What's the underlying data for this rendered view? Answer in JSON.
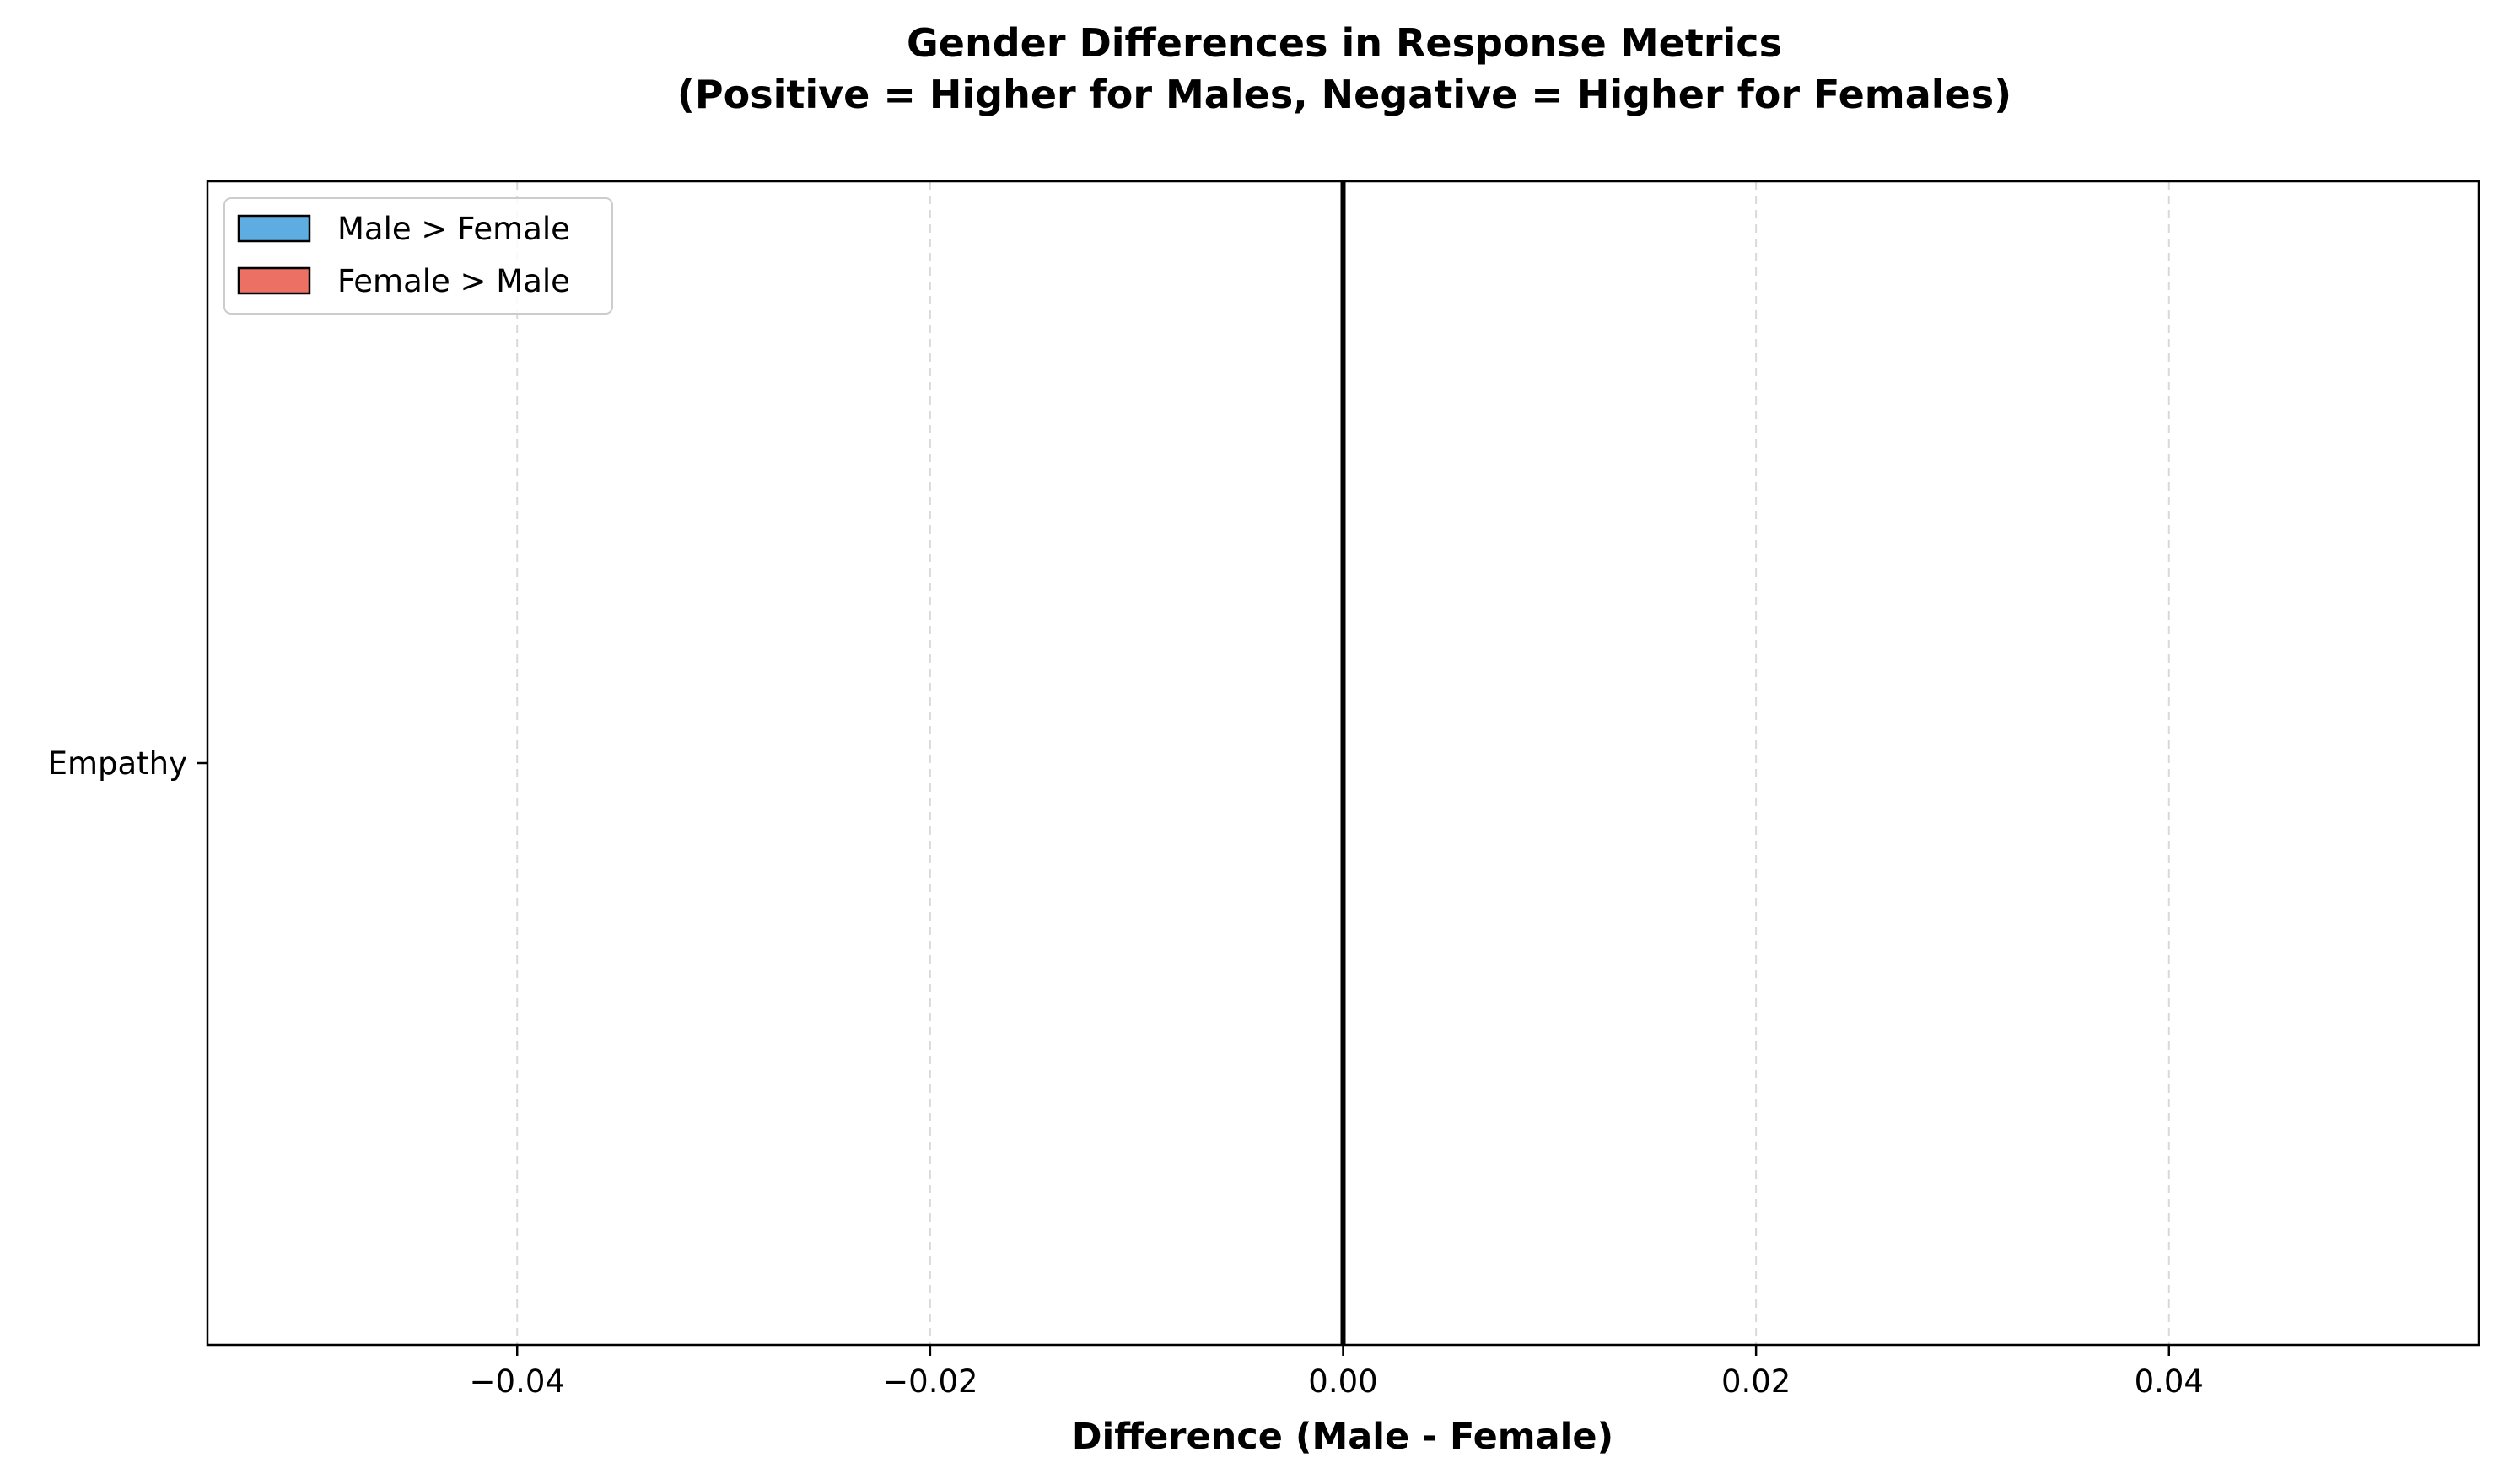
{
  "chart_data": {
    "type": "bar",
    "orientation": "horizontal",
    "title_lines": [
      "Gender Differences in Response Metrics",
      "(Positive = Higher for Males, Negative = Higher for Females)"
    ],
    "xlabel": "Difference (Male - Female)",
    "ylabel": "",
    "categories": [
      "Empathy"
    ],
    "values": [
      0.0
    ],
    "xlim": [
      -0.055,
      0.055
    ],
    "xticks": [
      -0.04,
      -0.02,
      0.0,
      0.02,
      0.04
    ],
    "xtick_labels": [
      "−0.04",
      "−0.02",
      "0.00",
      "0.02",
      "0.04"
    ],
    "grid": {
      "x": true,
      "y": false,
      "style": "dashed"
    },
    "zero_line": true,
    "legend": {
      "position": "top-left",
      "entries": [
        {
          "label": "Male > Female",
          "color": "#5dade2"
        },
        {
          "label": "Female > Male",
          "color": "#ec7063"
        }
      ]
    }
  }
}
